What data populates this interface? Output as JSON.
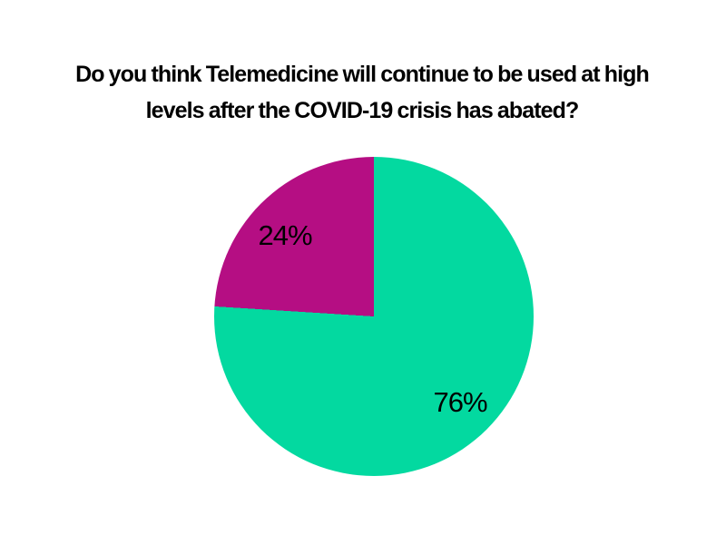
{
  "title": {
    "line1": "Do you think Telemedicine will continue to be used at high",
    "line2": "levels after the COVID-19 crisis has abated?"
  },
  "chart_data": {
    "type": "pie",
    "title": "Do you think Telemedicine will continue to be used at high levels after the COVID-19 crisis has abated?",
    "slices": [
      {
        "label": "76%",
        "value": 76,
        "color": "#03d9a0"
      },
      {
        "label": "24%",
        "value": 24,
        "color": "#b50e83"
      }
    ],
    "start_angle_deg": 0,
    "direction": "clockwise",
    "legend": "none",
    "data_labels": "percent-inside",
    "background": "#ffffff",
    "title_color": "#000000",
    "label_color": "#000000"
  }
}
